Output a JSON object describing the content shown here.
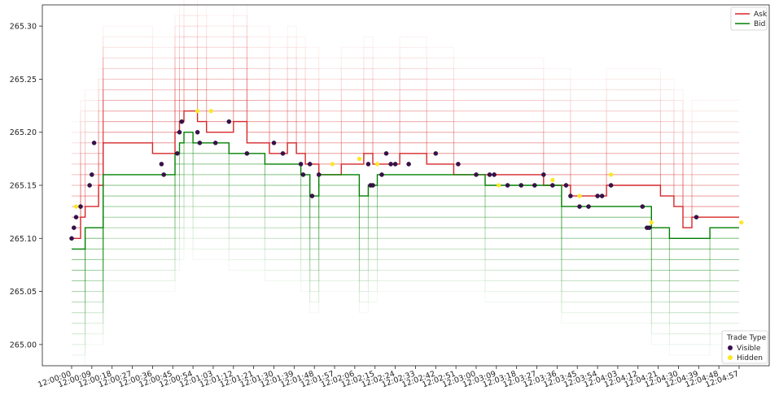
{
  "chart_data": {
    "type": "line",
    "ylim": [
      264.98,
      265.32
    ],
    "yticks": [
      "265.00",
      "265.05",
      "265.10",
      "265.15",
      "265.20",
      "265.25",
      "265.30"
    ],
    "x_ticks": [
      "12:00:00",
      "12:00:09",
      "12:00:18",
      "12:00:27",
      "12:00:36",
      "12:00:45",
      "12:00:54",
      "12:01:03",
      "12:01:12",
      "12:01:21",
      "12:01:30",
      "12:01:39",
      "12:01:48",
      "12:01:57",
      "12:02:06",
      "12:02:15",
      "12:02:24",
      "12:02:33",
      "12:02:42",
      "12:02:51",
      "12:03:00",
      "12:03:09",
      "12:03:18",
      "12:03:27",
      "12:03:36",
      "12:03:45",
      "12:03:54",
      "12:04:03",
      "12:04:12",
      "12:04:21",
      "12:04:30",
      "12:04:39",
      "12:04:48",
      "12:04:57"
    ],
    "x_range_seconds": [
      0,
      297
    ],
    "series": [
      {
        "name": "Ask",
        "color": "#d62728",
        "points": [
          [
            0,
            265.1
          ],
          [
            4,
            265.12
          ],
          [
            6,
            265.13
          ],
          [
            12,
            265.15
          ],
          [
            14,
            265.19
          ],
          [
            20,
            265.19
          ],
          [
            22,
            265.19
          ],
          [
            28,
            265.19
          ],
          [
            32,
            265.19
          ],
          [
            36,
            265.18
          ],
          [
            40,
            265.18
          ],
          [
            42,
            265.18
          ],
          [
            44,
            265.18
          ],
          [
            46,
            265.2
          ],
          [
            48,
            265.21
          ],
          [
            50,
            265.22
          ],
          [
            56,
            265.21
          ],
          [
            60,
            265.2
          ],
          [
            64,
            265.2
          ],
          [
            68,
            265.2
          ],
          [
            72,
            265.21
          ],
          [
            78,
            265.19
          ],
          [
            84,
            265.19
          ],
          [
            88,
            265.18
          ],
          [
            92,
            265.18
          ],
          [
            96,
            265.19
          ],
          [
            100,
            265.18
          ],
          [
            104,
            265.17
          ],
          [
            110,
            265.16
          ],
          [
            116,
            265.16
          ],
          [
            120,
            265.17
          ],
          [
            126,
            265.17
          ],
          [
            130,
            265.18
          ],
          [
            134,
            265.17
          ],
          [
            140,
            265.17
          ],
          [
            146,
            265.18
          ],
          [
            152,
            265.18
          ],
          [
            158,
            265.17
          ],
          [
            164,
            265.17
          ],
          [
            170,
            265.16
          ],
          [
            176,
            265.16
          ],
          [
            182,
            265.16
          ],
          [
            186,
            265.16
          ],
          [
            190,
            265.16
          ],
          [
            196,
            265.16
          ],
          [
            202,
            265.16
          ],
          [
            206,
            265.16
          ],
          [
            210,
            265.15
          ],
          [
            214,
            265.15
          ],
          [
            218,
            265.15
          ],
          [
            222,
            265.14
          ],
          [
            226,
            265.14
          ],
          [
            230,
            265.14
          ],
          [
            234,
            265.14
          ],
          [
            238,
            265.15
          ],
          [
            242,
            265.15
          ],
          [
            250,
            265.15
          ],
          [
            256,
            265.15
          ],
          [
            262,
            265.14
          ],
          [
            268,
            265.13
          ],
          [
            272,
            265.11
          ],
          [
            276,
            265.12
          ],
          [
            282,
            265.12
          ],
          [
            290,
            265.12
          ],
          [
            297,
            265.12
          ]
        ]
      },
      {
        "name": "Bid",
        "color": "#008000",
        "points": [
          [
            0,
            265.09
          ],
          [
            4,
            265.09
          ],
          [
            6,
            265.11
          ],
          [
            10,
            265.11
          ],
          [
            14,
            265.16
          ],
          [
            20,
            265.16
          ],
          [
            28,
            265.16
          ],
          [
            34,
            265.16
          ],
          [
            40,
            265.16
          ],
          [
            44,
            265.16
          ],
          [
            46,
            265.18
          ],
          [
            48,
            265.19
          ],
          [
            50,
            265.2
          ],
          [
            54,
            265.19
          ],
          [
            58,
            265.19
          ],
          [
            62,
            265.19
          ],
          [
            66,
            265.19
          ],
          [
            70,
            265.18
          ],
          [
            74,
            265.18
          ],
          [
            78,
            265.18
          ],
          [
            82,
            265.18
          ],
          [
            86,
            265.17
          ],
          [
            90,
            265.17
          ],
          [
            94,
            265.17
          ],
          [
            98,
            265.17
          ],
          [
            102,
            265.16
          ],
          [
            106,
            265.14
          ],
          [
            110,
            265.16
          ],
          [
            114,
            265.16
          ],
          [
            118,
            265.16
          ],
          [
            122,
            265.16
          ],
          [
            126,
            265.16
          ],
          [
            128,
            265.14
          ],
          [
            132,
            265.15
          ],
          [
            136,
            265.16
          ],
          [
            140,
            265.16
          ],
          [
            146,
            265.16
          ],
          [
            152,
            265.16
          ],
          [
            158,
            265.16
          ],
          [
            164,
            265.16
          ],
          [
            170,
            265.16
          ],
          [
            176,
            265.16
          ],
          [
            180,
            265.16
          ],
          [
            184,
            265.15
          ],
          [
            188,
            265.15
          ],
          [
            194,
            265.15
          ],
          [
            200,
            265.15
          ],
          [
            206,
            265.15
          ],
          [
            210,
            265.15
          ],
          [
            214,
            265.15
          ],
          [
            218,
            265.13
          ],
          [
            222,
            265.13
          ],
          [
            226,
            265.13
          ],
          [
            230,
            265.13
          ],
          [
            236,
            265.13
          ],
          [
            242,
            265.13
          ],
          [
            248,
            265.13
          ],
          [
            254,
            265.13
          ],
          [
            258,
            265.11
          ],
          [
            262,
            265.11
          ],
          [
            266,
            265.1
          ],
          [
            272,
            265.1
          ],
          [
            278,
            265.1
          ],
          [
            284,
            265.11
          ],
          [
            290,
            265.11
          ],
          [
            297,
            265.11
          ]
        ]
      }
    ],
    "trades": {
      "visible": [
        [
          0,
          265.1
        ],
        [
          1,
          265.11
        ],
        [
          2,
          265.12
        ],
        [
          4,
          265.13
        ],
        [
          8,
          265.15
        ],
        [
          9,
          265.16
        ],
        [
          10,
          265.19
        ],
        [
          40,
          265.17
        ],
        [
          41,
          265.16
        ],
        [
          47,
          265.18
        ],
        [
          48,
          265.2
        ],
        [
          49,
          265.21
        ],
        [
          56,
          265.2
        ],
        [
          57,
          265.19
        ],
        [
          64,
          265.19
        ],
        [
          70,
          265.21
        ],
        [
          78,
          265.18
        ],
        [
          90,
          265.19
        ],
        [
          94,
          265.18
        ],
        [
          102,
          265.17
        ],
        [
          103,
          265.16
        ],
        [
          106,
          265.17
        ],
        [
          107,
          265.14
        ],
        [
          110,
          265.16
        ],
        [
          132,
          265.17
        ],
        [
          133,
          265.15
        ],
        [
          134,
          265.15
        ],
        [
          138,
          265.16
        ],
        [
          140,
          265.18
        ],
        [
          142,
          265.17
        ],
        [
          144,
          265.17
        ],
        [
          150,
          265.17
        ],
        [
          162,
          265.18
        ],
        [
          172,
          265.17
        ],
        [
          180,
          265.16
        ],
        [
          186,
          265.16
        ],
        [
          188,
          265.16
        ],
        [
          194,
          265.15
        ],
        [
          200,
          265.15
        ],
        [
          206,
          265.15
        ],
        [
          210,
          265.16
        ],
        [
          214,
          265.15
        ],
        [
          220,
          265.15
        ],
        [
          222,
          265.14
        ],
        [
          226,
          265.13
        ],
        [
          230,
          265.13
        ],
        [
          234,
          265.14
        ],
        [
          236,
          265.14
        ],
        [
          240,
          265.15
        ],
        [
          254,
          265.13
        ],
        [
          256,
          265.11
        ],
        [
          257,
          265.11
        ],
        [
          278,
          265.12
        ]
      ],
      "hidden": [
        [
          2,
          265.13
        ],
        [
          56,
          265.22
        ],
        [
          62,
          265.22
        ],
        [
          116,
          265.17
        ],
        [
          128,
          265.175
        ],
        [
          136,
          265.17
        ],
        [
          190,
          265.15
        ],
        [
          214,
          265.155
        ],
        [
          226,
          265.14
        ],
        [
          240,
          265.16
        ],
        [
          258,
          265.115
        ],
        [
          298,
          265.115
        ]
      ]
    },
    "legend_top": {
      "placement": "top-right",
      "entries": [
        "Ask",
        "Bid"
      ]
    },
    "legend_bottom": {
      "placement": "bottom-right",
      "title": "Trade Type",
      "entries": [
        "Visible",
        "Hidden"
      ]
    },
    "colors": {
      "ask": "#d62728",
      "bid": "#008000",
      "visible": "#3b0f4f",
      "hidden": "#fde725"
    }
  }
}
